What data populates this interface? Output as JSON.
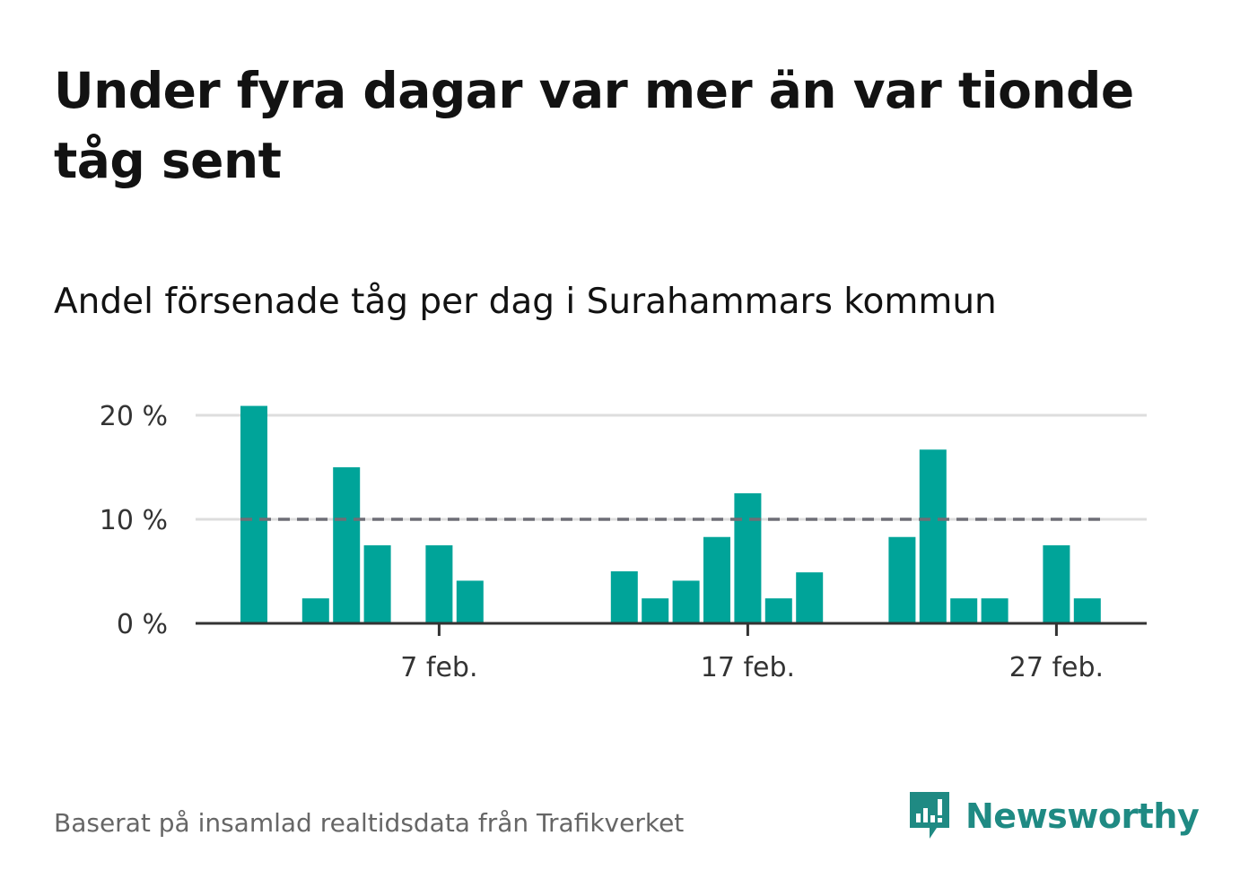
{
  "headline": "Under fyra dagar var mer än var tionde tåg sent",
  "subtitle": "Andel försenade tåg per dag i Surahammars kommun",
  "footer": "Baserat på insamlad realtidsdata från Trafikverket",
  "brand": {
    "name": "Newsworthy",
    "icon": "bar-chart-speech-bubble-icon"
  },
  "colors": {
    "bar": "#00a499",
    "grid": "#dddddd",
    "axis": "#333333",
    "reference_line": "#6e6e76",
    "brand": "#1f8a83"
  },
  "chart_data": {
    "type": "bar",
    "x": [
      "1 feb.",
      "2 feb.",
      "3 feb.",
      "4 feb.",
      "5 feb.",
      "6 feb.",
      "7 feb.",
      "8 feb.",
      "9 feb.",
      "10 feb.",
      "11 feb.",
      "12 feb.",
      "13 feb.",
      "14 feb.",
      "15 feb.",
      "16 feb.",
      "17 feb.",
      "18 feb.",
      "19 feb.",
      "20 feb.",
      "21 feb.",
      "22 feb.",
      "23 feb.",
      "24 feb.",
      "25 feb.",
      "26 feb.",
      "27 feb.",
      "28 feb."
    ],
    "values": [
      20.9,
      0,
      2.4,
      15.0,
      7.5,
      0,
      7.5,
      4.1,
      0,
      0,
      0,
      0,
      5.0,
      2.4,
      4.1,
      8.3,
      12.5,
      2.4,
      4.9,
      0,
      0,
      8.3,
      16.7,
      2.4,
      2.4,
      0,
      7.5,
      2.4
    ],
    "x_ticks": [
      {
        "label": "7 feb.",
        "index": 6
      },
      {
        "label": "17 feb.",
        "index": 16
      },
      {
        "label": "27 feb.",
        "index": 26
      }
    ],
    "y_ticks": [
      {
        "label": "0 %",
        "value": 0
      },
      {
        "label": "10 %",
        "value": 10
      },
      {
        "label": "20 %",
        "value": 20
      }
    ],
    "ylim": [
      0,
      21
    ],
    "reference_line": {
      "value": 10,
      "style": "dashed"
    },
    "grid": true,
    "legend": false
  }
}
